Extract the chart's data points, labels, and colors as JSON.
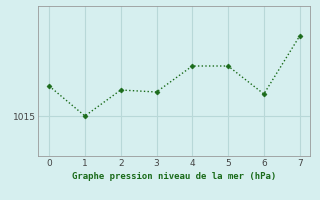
{
  "x": [
    0,
    1,
    2,
    3,
    4,
    5,
    6,
    7
  ],
  "y": [
    1016.5,
    1015.0,
    1016.3,
    1016.2,
    1017.5,
    1017.5,
    1016.1,
    1019.0
  ],
  "line_color": "#1a6b1a",
  "marker_color": "#1a6b1a",
  "bg_color": "#d6efef",
  "grid_color": "#b8d8d8",
  "xlabel": "Graphe pression niveau de la mer (hPa)",
  "xlabel_color": "#1a6b1a",
  "tick_color": "#444444",
  "ytick_label": "1015",
  "ytick_value": 1015,
  "xlim": [
    -0.3,
    7.3
  ],
  "ylim": [
    1013.0,
    1020.5
  ],
  "xticks": [
    0,
    1,
    2,
    3,
    4,
    5,
    6,
    7
  ],
  "yticks": [
    1015
  ]
}
